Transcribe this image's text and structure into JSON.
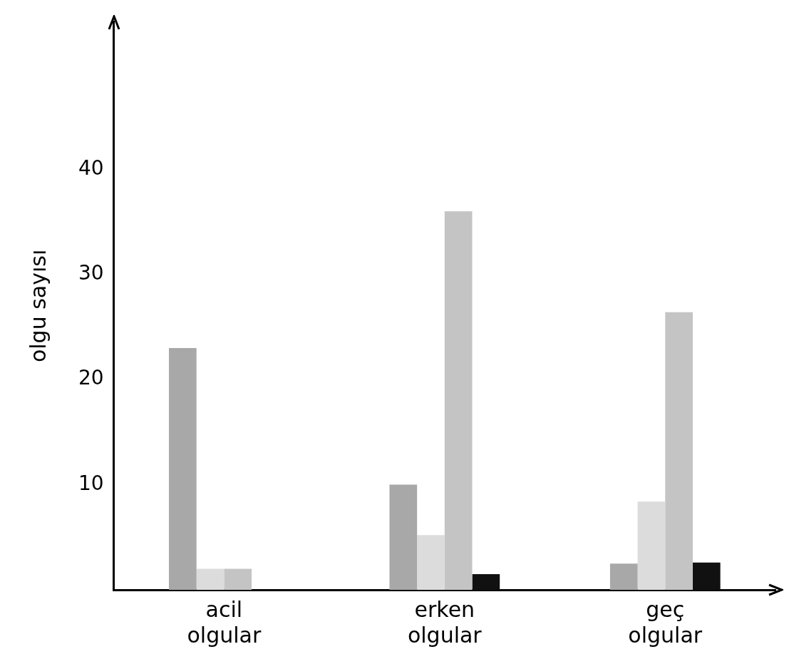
{
  "chart_data": {
    "type": "bar",
    "ylabel": "olgu sayısı",
    "categories": [
      "acil olgular",
      "erken olgular",
      "geç olgular"
    ],
    "series": [
      {
        "color": "#a8a8a8",
        "values": [
          23,
          10,
          2.5
        ]
      },
      {
        "color": "#dcdcdc",
        "values": [
          2,
          5.2,
          8.4
        ]
      },
      {
        "color": "#c4c4c4",
        "values": [
          2,
          36,
          26.4
        ]
      },
      {
        "color": "#111111",
        "values": [
          null,
          1.5,
          2.6
        ]
      }
    ],
    "ylim": [
      0,
      54
    ],
    "yticks": [
      10,
      20,
      30,
      40
    ],
    "grid": false,
    "legend": false
  }
}
